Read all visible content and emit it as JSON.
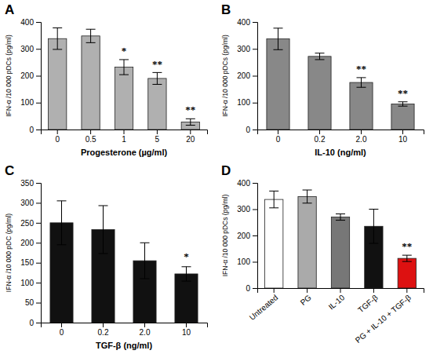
{
  "chart_data": [
    {
      "type": "bar",
      "title": "A",
      "categories": [
        "0",
        "0.5",
        "1",
        "5",
        "20"
      ],
      "values": [
        338,
        348,
        232,
        190,
        28
      ],
      "errors": [
        40,
        25,
        28,
        22,
        12
      ],
      "xlabel": "Progesterone (µg/ml)",
      "ylabel": "IFN-α /10 000 pDCs (pg/ml)",
      "ylim": [
        0,
        400
      ],
      "yticks": [
        0,
        100,
        200,
        300,
        400
      ],
      "color": "#b0b0b0",
      "annotations": [
        {
          "text": "*",
          "category": "1"
        },
        {
          "text": "**",
          "category": "5"
        },
        {
          "text": "**",
          "category": "20"
        }
      ]
    },
    {
      "type": "bar",
      "title": "B",
      "categories": [
        "0",
        "0.2",
        "2.0",
        "10"
      ],
      "values": [
        337,
        272,
        175,
        95
      ],
      "errors": [
        40,
        12,
        18,
        8
      ],
      "xlabel": "IL-10 (ng/ml)",
      "ylabel": "IFN-α /10 000 pDCs (pg/ml)",
      "ylim": [
        0,
        400
      ],
      "yticks": [
        0,
        100,
        200,
        300,
        400
      ],
      "color": "#888888",
      "annotations": [
        {
          "text": "**",
          "category": "2.0"
        },
        {
          "text": "**",
          "category": "10"
        }
      ]
    },
    {
      "type": "bar",
      "title": "C",
      "categories": [
        "0",
        "0.2",
        "2.0",
        "10"
      ],
      "values": [
        250,
        233,
        155,
        122
      ],
      "errors": [
        55,
        60,
        45,
        18
      ],
      "xlabel": "TGF-β  (ng/ml)",
      "ylabel": "IFN-α /10 000 pDC (pg/ml)",
      "ylim": [
        0,
        350
      ],
      "yticks": [
        0,
        50,
        100,
        150,
        200,
        250,
        300,
        350
      ],
      "color": "#111111",
      "annotations": [
        {
          "text": "*",
          "category": "10"
        }
      ]
    },
    {
      "type": "bar",
      "title": "D",
      "categories": [
        "Untreated",
        "PG",
        "IL-10",
        "TGF-β",
        "PG + IL-10 + TGF-β"
      ],
      "values": [
        337,
        348,
        270,
        235,
        113
      ],
      "errors": [
        32,
        25,
        12,
        65,
        12
      ],
      "ylabel": "IFN-α /10 000 pDCs (pg/ml)",
      "ylim": [
        0,
        400
      ],
      "yticks": [
        0,
        100,
        200,
        300,
        400
      ],
      "colors": [
        "#ffffff",
        "#aaaaaa",
        "#777777",
        "#111111",
        "#dd1111"
      ],
      "annotations": [
        {
          "text": "**",
          "category": "PG + IL-10 + TGF-β"
        }
      ]
    }
  ]
}
